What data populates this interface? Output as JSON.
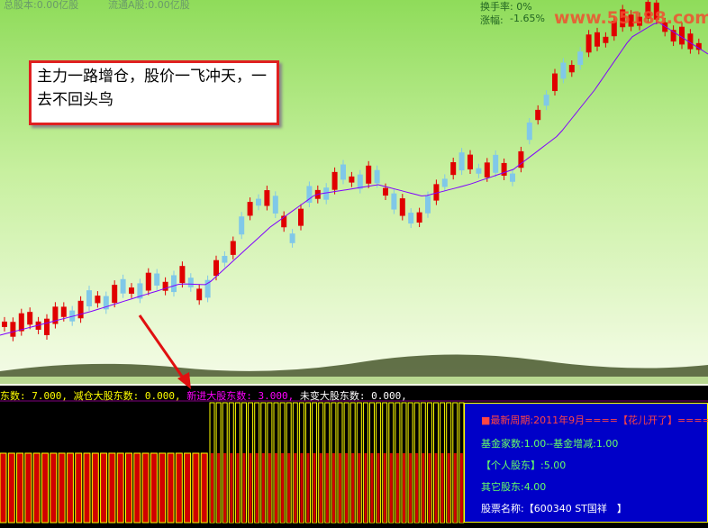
{
  "header": {
    "total_shares": "总股本:0.00亿股",
    "float_shares": "流通A股:0.00亿股",
    "turnover": "换手率: 0%",
    "change_label": "涨幅:",
    "change_value": "-1.65%",
    "watermark": "www.55188.com"
  },
  "annotation": "主力一路增仓，股价一飞冲天，一去不回头鸟",
  "status_line": [
    "东数: 7.000,",
    "减仓大股东数: 0.000,",
    "新进大股东数: 3.000,",
    "未变大股东数: 0.000,"
  ],
  "info_panel": [
    "■最新周期:2011年9月====【花儿开了】====",
    "基金家数:1.00--基金增减:1.00",
    "【个人股东】:5.00",
    "其它股东:4.00",
    "股票名称:【600340 ST国祥　】"
  ]
}
